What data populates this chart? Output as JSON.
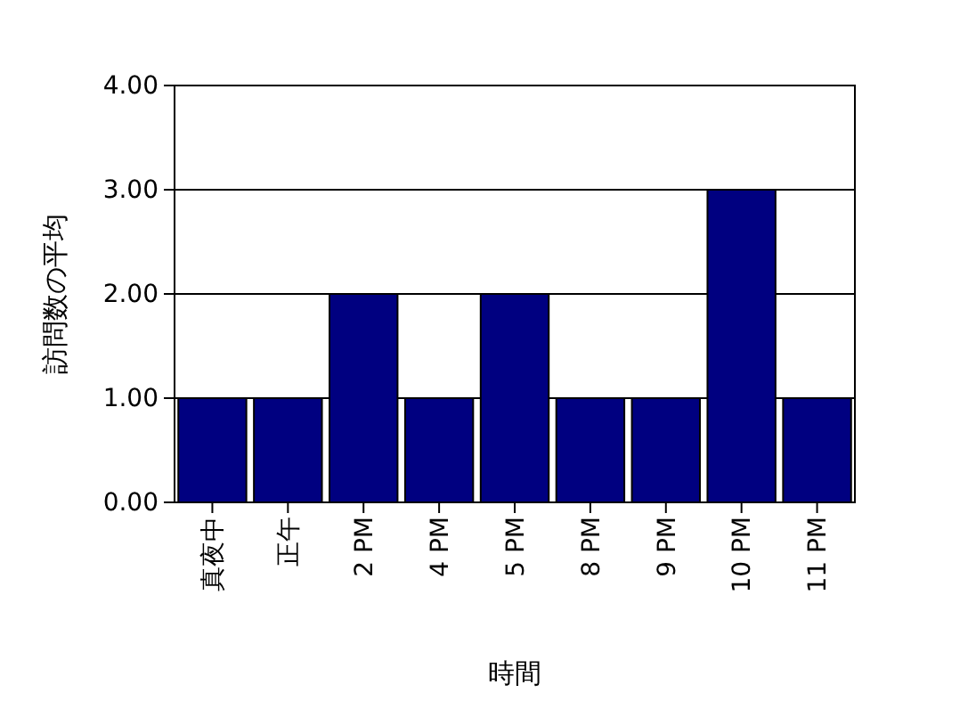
{
  "chart_data": {
    "type": "bar",
    "xlabel": "時間",
    "ylabel": "訪問数の平均",
    "categories": [
      "真夜中",
      "正午",
      "2 PM",
      "4 PM",
      "5 PM",
      "8 PM",
      "9 PM",
      "10 PM",
      "11 PM"
    ],
    "values": [
      1,
      1,
      2,
      1,
      2,
      1,
      1,
      3,
      1
    ],
    "color": "#000080",
    "ylim": [
      0,
      4
    ],
    "yticks": [
      {
        "value": 0,
        "label": "0.00"
      },
      {
        "value": 1,
        "label": "1.00"
      },
      {
        "value": 2,
        "label": "2.00"
      },
      {
        "value": 3,
        "label": "3.00"
      },
      {
        "value": 4,
        "label": "4.00"
      }
    ],
    "grid": "y"
  }
}
